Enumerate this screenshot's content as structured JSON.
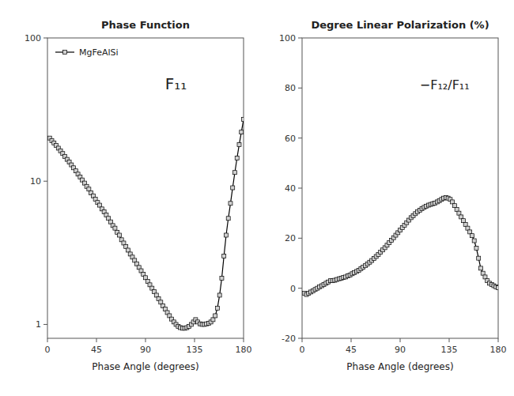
{
  "chart_data": [
    {
      "type": "line",
      "title": "Phase Function",
      "x_label": "Phase Angle (degrees)",
      "annotations": [
        "F₁₁"
      ],
      "x": [
        2,
        4,
        6,
        8,
        10,
        12,
        14,
        16,
        18,
        20,
        22,
        24,
        26,
        28,
        30,
        32,
        34,
        36,
        38,
        40,
        42,
        44,
        46,
        48,
        50,
        52,
        54,
        56,
        58,
        60,
        62,
        64,
        66,
        68,
        70,
        72,
        74,
        76,
        78,
        80,
        82,
        84,
        86,
        88,
        90,
        92,
        94,
        96,
        98,
        100,
        102,
        104,
        106,
        108,
        110,
        112,
        114,
        116,
        118,
        120,
        122,
        124,
        126,
        128,
        130,
        132,
        134,
        136,
        138,
        140,
        142,
        144,
        146,
        148,
        150,
        152,
        154,
        156,
        158,
        160,
        162,
        164,
        166,
        168,
        170,
        172,
        174,
        176,
        178,
        180
      ],
      "series": [
        {
          "name": "MgFeAlSi",
          "color": "#000000",
          "marker": "square",
          "values": [
            20.0,
            19.2,
            18.5,
            17.8,
            17.0,
            16.3,
            15.6,
            14.9,
            14.2,
            13.6,
            13.0,
            12.4,
            11.8,
            11.2,
            10.7,
            10.2,
            9.7,
            9.2,
            8.8,
            8.3,
            7.9,
            7.5,
            7.1,
            6.8,
            6.4,
            6.1,
            5.8,
            5.5,
            5.2,
            4.9,
            4.7,
            4.4,
            4.2,
            3.9,
            3.7,
            3.5,
            3.3,
            3.1,
            2.95,
            2.8,
            2.65,
            2.5,
            2.37,
            2.24,
            2.12,
            2.0,
            1.89,
            1.79,
            1.69,
            1.6,
            1.51,
            1.43,
            1.35,
            1.28,
            1.21,
            1.15,
            1.09,
            1.04,
            1.0,
            0.97,
            0.95,
            0.94,
            0.94,
            0.95,
            0.97,
            1.0,
            1.04,
            1.08,
            1.04,
            1.01,
            1.0,
            1.0,
            1.01,
            1.02,
            1.04,
            1.08,
            1.15,
            1.3,
            1.6,
            2.1,
            3.0,
            4.2,
            5.5,
            7.0,
            9.0,
            11.5,
            14.5,
            18.0,
            22.0,
            27.0
          ]
        }
      ],
      "xlim": [
        0,
        180
      ],
      "xticks": [
        0,
        45,
        90,
        135,
        180
      ],
      "ylim": [
        0.8,
        100
      ],
      "yticks": [
        1,
        10,
        100
      ],
      "log": "y",
      "legend": "upper left"
    },
    {
      "type": "line",
      "title": "Degree Linear Polarization (%)",
      "x_label": "Phase Angle (degrees)",
      "annotations": [
        "−F₁₂/F₁₁"
      ],
      "x": [
        2,
        4,
        6,
        8,
        10,
        12,
        14,
        16,
        18,
        20,
        22,
        24,
        26,
        28,
        30,
        32,
        34,
        36,
        38,
        40,
        42,
        44,
        46,
        48,
        50,
        52,
        54,
        56,
        58,
        60,
        62,
        64,
        66,
        68,
        70,
        72,
        74,
        76,
        78,
        80,
        82,
        84,
        86,
        88,
        90,
        92,
        94,
        96,
        98,
        100,
        102,
        104,
        106,
        108,
        110,
        112,
        114,
        116,
        118,
        120,
        122,
        124,
        126,
        128,
        130,
        132,
        134,
        136,
        138,
        140,
        142,
        144,
        146,
        148,
        150,
        152,
        154,
        156,
        158,
        160,
        162,
        164,
        166,
        168,
        170,
        172,
        174,
        176,
        178,
        180
      ],
      "series": [
        {
          "color": "#000000",
          "marker": "square",
          "values": [
            -2.0,
            -2.5,
            -2.0,
            -1.5,
            -1.0,
            -0.5,
            0.0,
            0.5,
            1.0,
            1.5,
            2.0,
            2.5,
            3.0,
            3.0,
            3.2,
            3.5,
            3.8,
            4.0,
            4.3,
            4.5,
            5.0,
            5.3,
            5.8,
            6.2,
            6.7,
            7.2,
            7.8,
            8.4,
            9.0,
            9.7,
            10.4,
            11.1,
            11.9,
            12.7,
            13.5,
            14.4,
            15.3,
            16.2,
            17.2,
            18.2,
            19.2,
            20.2,
            21.2,
            22.2,
            23.2,
            24.2,
            25.2,
            26.2,
            27.2,
            28.2,
            29.0,
            29.8,
            30.5,
            31.2,
            31.8,
            32.3,
            32.8,
            33.2,
            33.5,
            33.8,
            34.0,
            34.5,
            35.0,
            35.5,
            36.0,
            36.2,
            36.0,
            35.5,
            34.5,
            33.0,
            31.5,
            30.0,
            28.5,
            27.0,
            25.5,
            24.0,
            22.5,
            21.0,
            19.0,
            16.0,
            12.0,
            8.0,
            6.0,
            4.5,
            3.0,
            2.0,
            1.5,
            1.0,
            0.5,
            0.2
          ]
        }
      ],
      "xlim": [
        0,
        180
      ],
      "xticks": [
        0,
        45,
        90,
        135,
        180
      ],
      "ylim": [
        -20,
        100
      ],
      "yticks": [
        -20,
        0,
        20,
        40,
        60,
        80,
        100
      ]
    }
  ]
}
